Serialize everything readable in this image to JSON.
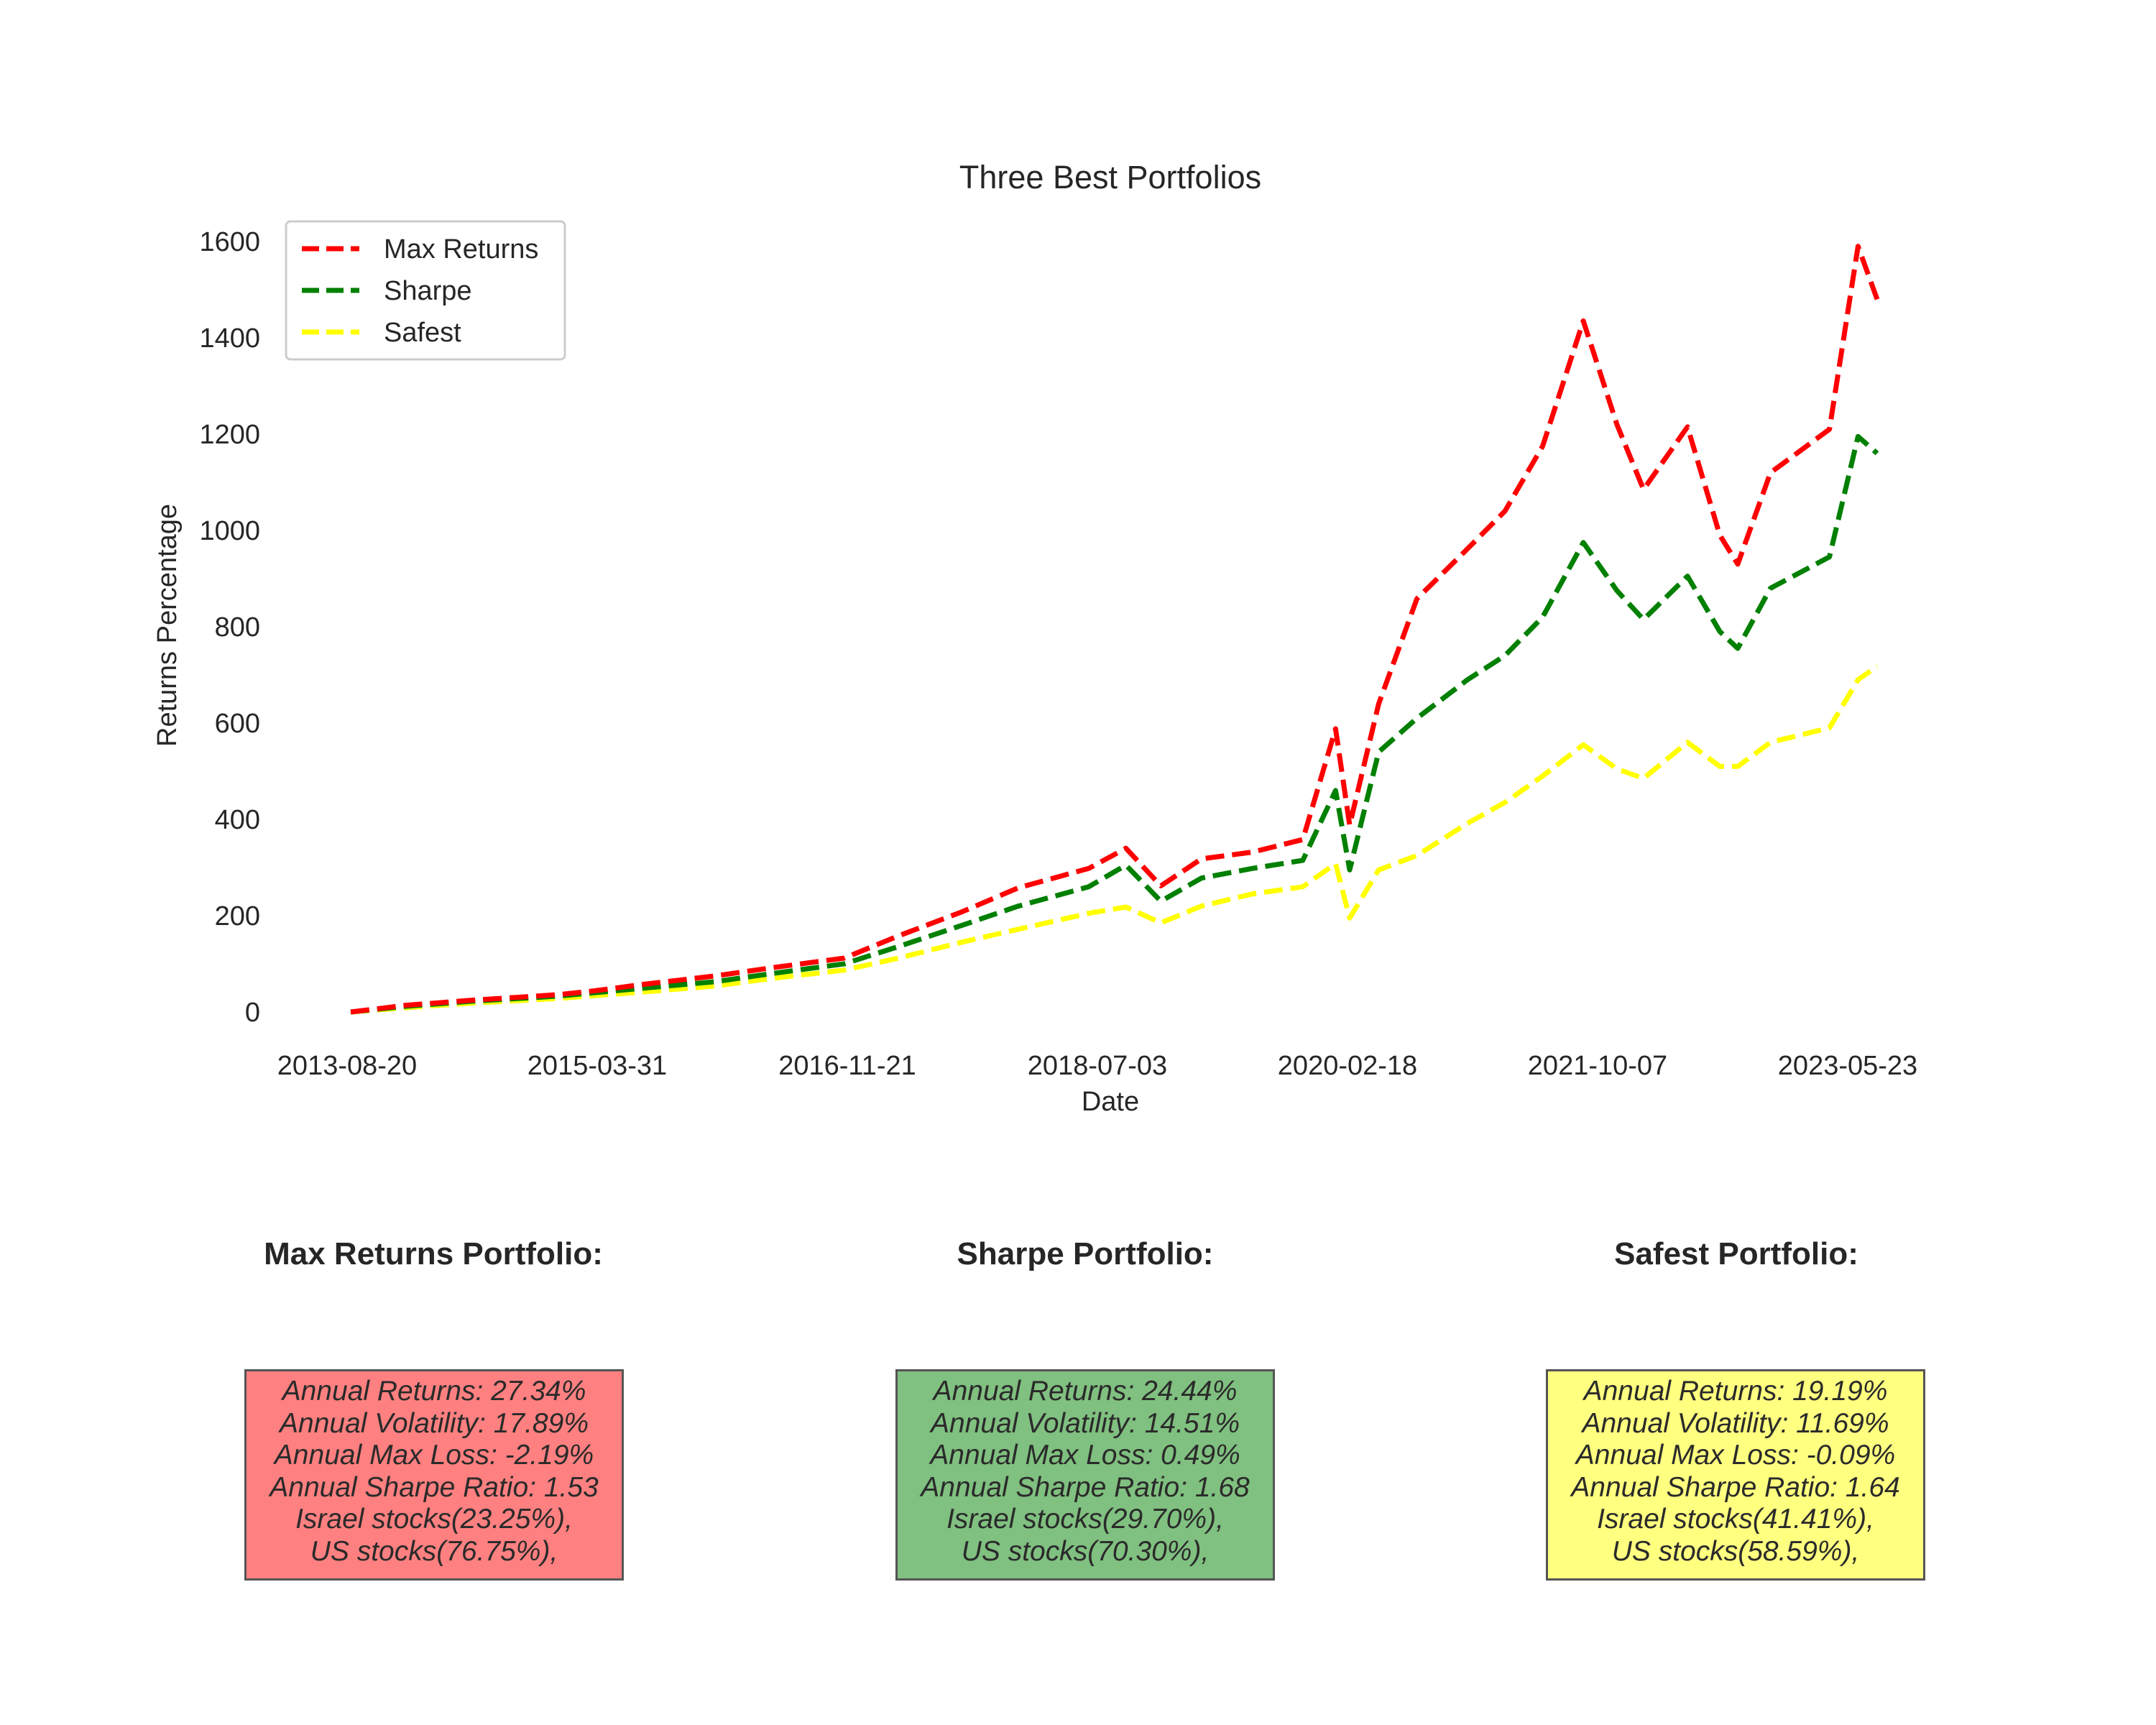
{
  "chart_data": {
    "type": "line",
    "title": "Three Best Portfolios",
    "xlabel": "Date",
    "ylabel": "Returns Percentage",
    "x_tick_labels": [
      "2013-08-20",
      "2015-03-31",
      "2016-11-21",
      "2018-07-03",
      "2020-02-18",
      "2021-10-07",
      "2023-05-23"
    ],
    "ylim": [
      -80,
      1650
    ],
    "y_ticks": [
      0,
      200,
      400,
      600,
      800,
      1000,
      1200,
      1400,
      1600
    ],
    "grid": false,
    "legend_position": "upper-left",
    "x": [
      "2013-08-20",
      "2014-01-01",
      "2014-06-01",
      "2015-01-01",
      "2015-03-31",
      "2015-08-01",
      "2016-01-15",
      "2016-06-01",
      "2016-11-21",
      "2017-04-01",
      "2017-09-01",
      "2018-01-15",
      "2018-07-03",
      "2018-10-01",
      "2018-12-24",
      "2019-04-01",
      "2019-08-01",
      "2019-12-01",
      "2020-02-18",
      "2020-03-23",
      "2020-06-01",
      "2020-09-01",
      "2021-01-01",
      "2021-04-01",
      "2021-07-01",
      "2021-10-07",
      "2021-12-27",
      "2022-03-01",
      "2022-06-15",
      "2022-09-01",
      "2022-10-14",
      "2023-01-01",
      "2023-05-23",
      "2023-07-31",
      "2023-09-15"
    ],
    "series": [
      {
        "name": "Max Returns",
        "color": "#ff0000",
        "values": [
          0,
          14,
          24,
          36,
          44,
          58,
          75,
          92,
          112,
          158,
          208,
          258,
          298,
          340,
          262,
          318,
          332,
          358,
          588,
          388,
          640,
          858,
          962,
          1040,
          1175,
          1435,
          1220,
          1085,
          1215,
          990,
          930,
          1120,
          1210,
          1590,
          1480
        ]
      },
      {
        "name": "Sharpe",
        "color": "#008000",
        "values": [
          0,
          12,
          22,
          33,
          40,
          50,
          63,
          80,
          100,
          136,
          180,
          220,
          260,
          305,
          230,
          278,
          298,
          315,
          460,
          295,
          540,
          610,
          690,
          740,
          820,
          975,
          875,
          815,
          905,
          790,
          755,
          880,
          945,
          1195,
          1160
        ]
      },
      {
        "name": "Safest",
        "color": "#ffff00",
        "values": [
          0,
          9,
          18,
          28,
          34,
          42,
          54,
          70,
          87,
          112,
          145,
          172,
          205,
          218,
          185,
          220,
          245,
          260,
          308,
          195,
          295,
          325,
          392,
          435,
          490,
          555,
          505,
          485,
          560,
          510,
          510,
          560,
          590,
          690,
          718
        ]
      }
    ]
  },
  "portfolios": [
    {
      "title": "Max Returns Portfolio:",
      "color": "#ff8080",
      "lines": [
        "Annual Returns: 27.34%",
        "Annual Volatility: 17.89%",
        "Annual Max Loss: -2.19%",
        "Annual Sharpe Ratio: 1.53",
        "Israel stocks(23.25%),",
        "US stocks(76.75%),"
      ]
    },
    {
      "title": "Sharpe Portfolio:",
      "color": "#80c080",
      "lines": [
        "Annual Returns: 24.44%",
        "Annual Volatility: 14.51%",
        "Annual Max Loss: 0.49%",
        "Annual Sharpe Ratio: 1.68",
        "Israel stocks(29.70%),",
        "US stocks(70.30%),"
      ]
    },
    {
      "title": "Safest Portfolio:",
      "color": "#ffff80",
      "lines": [
        "Annual Returns: 19.19%",
        "Annual Volatility: 11.69%",
        "Annual Max Loss: -0.09%",
        "Annual Sharpe Ratio: 1.64",
        "Israel stocks(41.41%),",
        "US stocks(58.59%),"
      ]
    }
  ]
}
